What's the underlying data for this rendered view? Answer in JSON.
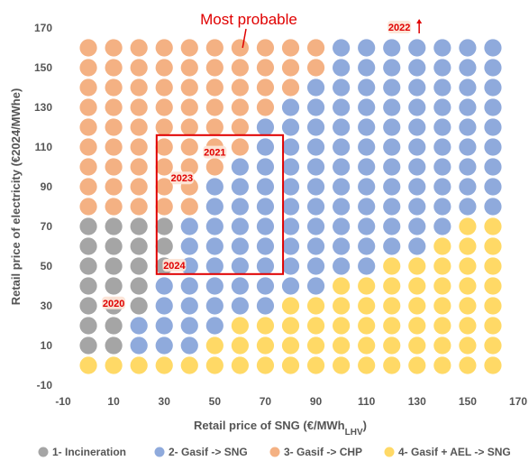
{
  "chart_data": {
    "type": "scatter",
    "xlabel": "Retail price of SNG (€/MWh",
    "xlabel_subscript": "LHV",
    "xlabel_suffix": ")",
    "ylabel": "Retail price of electricity (€2024/MWhe)",
    "xlim": [
      -10,
      170
    ],
    "ylim": [
      -10,
      170
    ],
    "x_ticks": [
      -10,
      10,
      30,
      50,
      70,
      90,
      110,
      130,
      150,
      170
    ],
    "y_ticks": [
      -10,
      10,
      30,
      50,
      70,
      90,
      110,
      130,
      150,
      170
    ],
    "x_tick_labels": [
      "-10",
      "10",
      "30",
      "50",
      "70",
      "90",
      "110",
      "130",
      "150",
      "170"
    ],
    "y_tick_labels": [
      "-10",
      "10",
      "30",
      "50",
      "70",
      "90",
      "110",
      "130",
      "150",
      "170"
    ],
    "grid": false,
    "legend_position": "bottom",
    "series": [
      {
        "name": "1- Incineration",
        "color": "#a5a5a5"
      },
      {
        "name": "2- Gasif -> SNG",
        "color": "#8faadc"
      },
      {
        "name": "3- Gasif -> CHP",
        "color": "#f4b183"
      },
      {
        "name": "4- Gasif + AEL -> SNG",
        "color": "#ffd966"
      }
    ],
    "x_values": [
      0,
      10,
      20,
      30,
      40,
      50,
      60,
      70,
      80,
      90,
      100,
      110,
      120,
      130,
      140,
      150,
      160
    ],
    "y_values": [
      0,
      10,
      20,
      30,
      40,
      50,
      60,
      70,
      80,
      90,
      100,
      110,
      120,
      130,
      140,
      150,
      160
    ],
    "grid_rows": [
      {
        "y": 0,
        "classes": [
          4,
          4,
          4,
          4,
          4,
          4,
          4,
          4,
          4,
          4,
          4,
          4,
          4,
          4,
          4,
          4,
          4
        ]
      },
      {
        "y": 10,
        "classes": [
          1,
          1,
          2,
          2,
          2,
          4,
          4,
          4,
          4,
          4,
          4,
          4,
          4,
          4,
          4,
          4,
          4
        ]
      },
      {
        "y": 20,
        "classes": [
          1,
          1,
          2,
          2,
          2,
          2,
          4,
          4,
          4,
          4,
          4,
          4,
          4,
          4,
          4,
          4,
          4
        ]
      },
      {
        "y": 30,
        "classes": [
          1,
          1,
          1,
          2,
          2,
          2,
          2,
          2,
          4,
          4,
          4,
          4,
          4,
          4,
          4,
          4,
          4
        ]
      },
      {
        "y": 40,
        "classes": [
          1,
          1,
          1,
          2,
          2,
          2,
          2,
          2,
          2,
          2,
          4,
          4,
          4,
          4,
          4,
          4,
          4
        ]
      },
      {
        "y": 50,
        "classes": [
          1,
          1,
          1,
          1,
          2,
          2,
          2,
          2,
          2,
          2,
          2,
          2,
          4,
          4,
          4,
          4,
          4
        ]
      },
      {
        "y": 60,
        "classes": [
          1,
          1,
          1,
          1,
          2,
          2,
          2,
          2,
          2,
          2,
          2,
          2,
          2,
          2,
          4,
          4,
          4
        ]
      },
      {
        "y": 70,
        "classes": [
          1,
          1,
          1,
          1,
          2,
          2,
          2,
          2,
          2,
          2,
          2,
          2,
          2,
          2,
          2,
          4,
          4
        ]
      },
      {
        "y": 80,
        "classes": [
          3,
          3,
          3,
          3,
          3,
          2,
          2,
          2,
          2,
          2,
          2,
          2,
          2,
          2,
          2,
          2,
          2
        ]
      },
      {
        "y": 90,
        "classes": [
          3,
          3,
          3,
          3,
          3,
          2,
          2,
          2,
          2,
          2,
          2,
          2,
          2,
          2,
          2,
          2,
          2
        ]
      },
      {
        "y": 100,
        "classes": [
          3,
          3,
          3,
          3,
          3,
          3,
          2,
          2,
          2,
          2,
          2,
          2,
          2,
          2,
          2,
          2,
          2
        ]
      },
      {
        "y": 110,
        "classes": [
          3,
          3,
          3,
          3,
          3,
          3,
          3,
          2,
          2,
          2,
          2,
          2,
          2,
          2,
          2,
          2,
          2
        ]
      },
      {
        "y": 120,
        "classes": [
          3,
          3,
          3,
          3,
          3,
          3,
          3,
          2,
          2,
          2,
          2,
          2,
          2,
          2,
          2,
          2,
          2
        ]
      },
      {
        "y": 130,
        "classes": [
          3,
          3,
          3,
          3,
          3,
          3,
          3,
          3,
          2,
          2,
          2,
          2,
          2,
          2,
          2,
          2,
          2
        ]
      },
      {
        "y": 140,
        "classes": [
          3,
          3,
          3,
          3,
          3,
          3,
          3,
          3,
          3,
          2,
          2,
          2,
          2,
          2,
          2,
          2,
          2
        ]
      },
      {
        "y": 150,
        "classes": [
          3,
          3,
          3,
          3,
          3,
          3,
          3,
          3,
          3,
          3,
          2,
          2,
          2,
          2,
          2,
          2,
          2
        ]
      },
      {
        "y": 160,
        "classes": [
          3,
          3,
          3,
          3,
          3,
          3,
          3,
          3,
          3,
          3,
          2,
          2,
          2,
          2,
          2,
          2,
          2
        ]
      }
    ],
    "annotations": {
      "title": "Most probable",
      "region_x": [
        27,
        77
      ],
      "region_y": [
        46,
        116
      ],
      "arrow_point": [
        61,
        160
      ],
      "years": [
        {
          "label": "2020",
          "x": 10,
          "y": 31
        },
        {
          "label": "2021",
          "x": 50,
          "y": 107
        },
        {
          "label": "2022",
          "x": 123,
          "y": 170
        },
        {
          "label": "2023",
          "x": 37,
          "y": 94
        },
        {
          "label": "2024",
          "x": 34,
          "y": 50
        }
      ]
    }
  }
}
